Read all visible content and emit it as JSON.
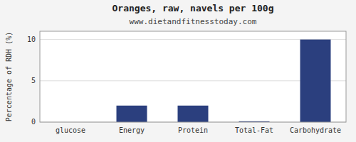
{
  "chart_data": {
    "type": "bar",
    "title": "Oranges, raw, navels per 100g",
    "subtitle": "www.dietandfitnesstoday.com",
    "categories": [
      "glucose",
      "Energy",
      "Protein",
      "Total-Fat",
      "Carbohydrate"
    ],
    "values": [
      0,
      2.0,
      2.0,
      0.1,
      10.0
    ],
    "color": "#2b3f7e",
    "ylabel": "Percentage of RDH (%)",
    "ylim": [
      0,
      11
    ],
    "yticks": [
      0,
      5,
      10
    ],
    "grid": true
  }
}
